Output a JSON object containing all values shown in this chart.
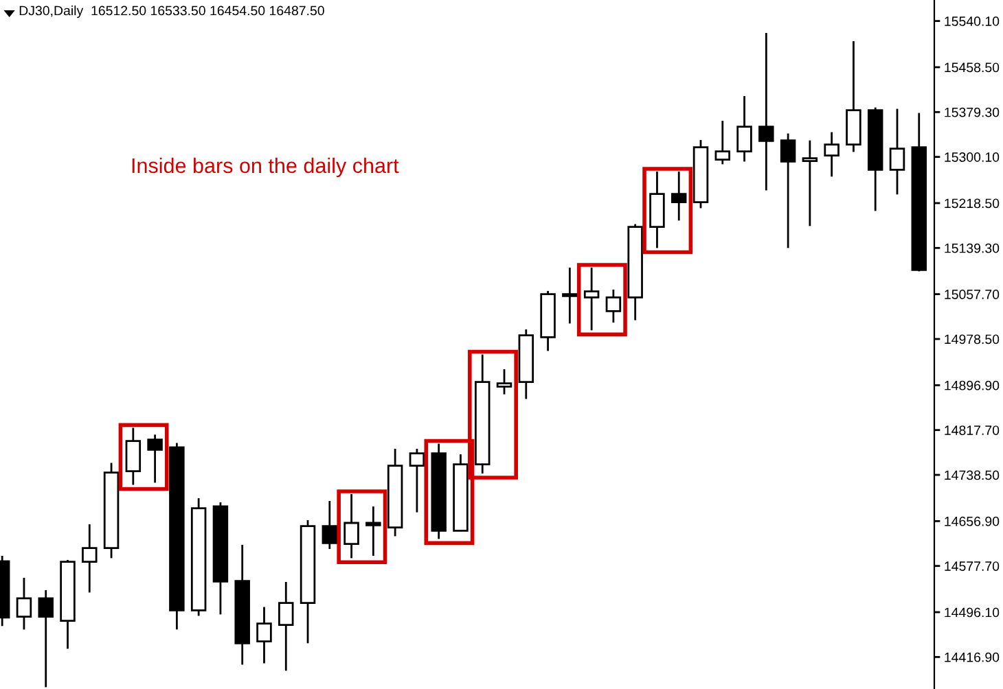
{
  "chart_data": {
    "type": "candlestick",
    "title": "DJ30,Daily  16512.50 16533.50 16454.50 16487.50",
    "annotations": [
      "Inside bars on the daily chart"
    ],
    "categories": [
      null,
      null,
      null,
      null,
      null,
      null,
      null,
      null,
      null,
      null,
      null,
      null,
      null,
      null,
      null,
      null,
      null,
      null,
      null,
      null,
      null,
      null,
      null,
      null,
      null,
      null,
      null,
      null,
      null,
      null,
      null,
      null,
      null,
      null,
      null,
      null,
      null,
      null,
      null,
      null,
      null,
      null,
      null
    ],
    "ohlc": [
      [
        14585.9,
        14595.6,
        14471.6,
        14486.5
      ],
      [
        14488.2,
        14556.8,
        14465.4,
        14520.4
      ],
      [
        14520.4,
        14535.0,
        14363.6,
        14488.2
      ],
      [
        14480.9,
        14588.3,
        14431.5,
        14585.1
      ],
      [
        14585.1,
        14651.3,
        14530.8,
        14609.4
      ],
      [
        14609.4,
        14759.7,
        14591.5,
        14742.7
      ],
      [
        14745.1,
        14821.7,
        14720.9,
        14798.4
      ],
      [
        14800.9,
        14809.6,
        14724.7,
        14782.9
      ],
      [
        14787.0,
        14795.0,
        14465.4,
        14499.3
      ],
      [
        14499.3,
        14697.4,
        14489.6,
        14679.7
      ],
      [
        14682.8,
        14690.1,
        14492.1,
        14550.2
      ],
      [
        14551.2,
        14615.0,
        14403.4,
        14441.2
      ],
      [
        14444.6,
        14505.2,
        14405.8,
        14476.1
      ],
      [
        14473.6,
        14549.5,
        14392.7,
        14512.4
      ],
      [
        14512.4,
        14658.6,
        14441.2,
        14648.2
      ],
      [
        14648.2,
        14692.5,
        14607.7,
        14618.1
      ],
      [
        14616.6,
        14704.6,
        14591.5,
        14653.7
      ],
      [
        14653.7,
        14682.8,
        14595.6,
        14649.6
      ],
      [
        14645.7,
        14784.6,
        14630.2,
        14754.8
      ],
      [
        14754.8,
        14784.6,
        14672.4,
        14776.6
      ],
      [
        14776.6,
        14793.6,
        14625.4,
        14639.9
      ],
      [
        14639.9,
        14774.9,
        14639.9,
        14757.2
      ],
      [
        14757.2,
        14951.1,
        14741.0,
        14902.7
      ],
      [
        14894.4,
        14925.2,
        14880.8,
        14900.2
      ],
      [
        14902.7,
        14995.5,
        14872.6,
        14985.1
      ],
      [
        14981.7,
        15063.4,
        14957.4,
        15057.8
      ],
      [
        15057.8,
        15104.6,
        15005.9,
        15054.4
      ],
      [
        15052.0,
        15104.6,
        14993.8,
        15062.6
      ],
      [
        15027.7,
        15065.8,
        15007.6,
        15052.0
      ],
      [
        15052.0,
        15181.4,
        15011.7,
        15176.5
      ],
      [
        15176.5,
        15274.2,
        15139.2,
        15234.7
      ],
      [
        15234.7,
        15274.2,
        15187.7,
        15220.2
      ],
      [
        15220.2,
        15330.0,
        15209.5,
        15317.1
      ],
      [
        15295.3,
        15363.9,
        15287.1,
        15309.9
      ],
      [
        15309.9,
        15407.5,
        15291.9,
        15353.5
      ],
      [
        15353.5,
        15519.0,
        15241.0,
        15328.3
      ],
      [
        15329.2,
        15341.4,
        15139.2,
        15291.9
      ],
      [
        15292.9,
        15329.2,
        15178.0,
        15297.7
      ],
      [
        15302.6,
        15343.8,
        15265.3,
        15322.0
      ],
      [
        15322.0,
        15504.5,
        15308.9,
        15382.6
      ],
      [
        15382.6,
        15387.4,
        15204.7,
        15277.4
      ],
      [
        15277.4,
        15385.0,
        15233.8,
        15314.7
      ],
      [
        15317.1,
        15377.7,
        15098.0,
        15100.4
      ]
    ],
    "ylim": [
      14360.4,
      15577.2
    ],
    "yticks": [
      {
        "value": 15540.1,
        "label": "15540.10"
      },
      {
        "value": 15458.5,
        "label": "15458.50"
      },
      {
        "value": 15379.3,
        "label": "15379.30"
      },
      {
        "value": 15300.1,
        "label": "15300.10"
      },
      {
        "value": 15218.5,
        "label": "15218.50"
      },
      {
        "value": 15139.3,
        "label": "15139.30"
      },
      {
        "value": 15057.7,
        "label": "15057.70"
      },
      {
        "value": 14978.5,
        "label": "14978.50"
      },
      {
        "value": 14896.9,
        "label": "14896.90"
      },
      {
        "value": 14817.7,
        "label": "14817.70"
      },
      {
        "value": 14738.5,
        "label": "14738.50"
      },
      {
        "value": 14656.9,
        "label": "14656.90"
      },
      {
        "value": 14577.7,
        "label": "14577.70"
      },
      {
        "value": 14496.1,
        "label": "14496.10"
      },
      {
        "value": 14416.9,
        "label": "14416.90"
      }
    ]
  }
}
